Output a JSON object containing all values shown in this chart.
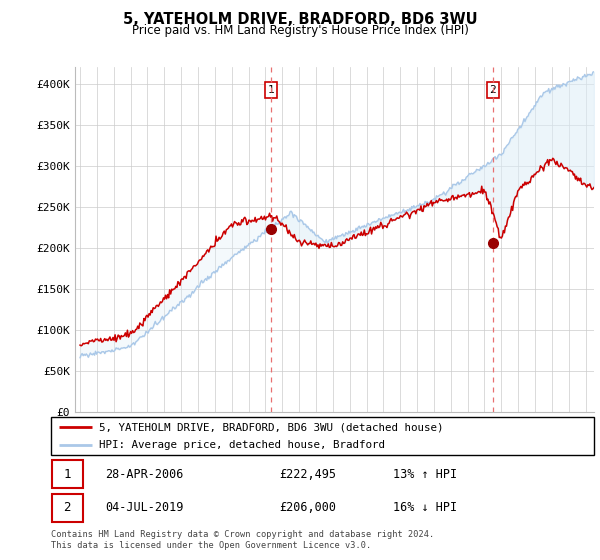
{
  "title": "5, YATEHOLM DRIVE, BRADFORD, BD6 3WU",
  "subtitle": "Price paid vs. HM Land Registry's House Price Index (HPI)",
  "ylim": [
    0,
    420000
  ],
  "yticks": [
    0,
    50000,
    100000,
    150000,
    200000,
    250000,
    300000,
    350000,
    400000
  ],
  "ytick_labels": [
    "£0",
    "£50K",
    "£100K",
    "£150K",
    "£200K",
    "£250K",
    "£300K",
    "£350K",
    "£400K"
  ],
  "hpi_color": "#aac8e8",
  "hpi_fill_color": "#ddeef8",
  "price_color": "#cc0000",
  "vline_color": "#e87070",
  "sale1_date": 2006.33,
  "sale1_price": 222495,
  "sale2_date": 2019.5,
  "sale2_price": 206000,
  "legend_line1": "5, YATEHOLM DRIVE, BRADFORD, BD6 3WU (detached house)",
  "legend_line2": "HPI: Average price, detached house, Bradford",
  "table_row1": [
    "1",
    "28-APR-2006",
    "£222,495",
    "13% ↑ HPI"
  ],
  "table_row2": [
    "2",
    "04-JUL-2019",
    "£206,000",
    "16% ↓ HPI"
  ],
  "footnote": "Contains HM Land Registry data © Crown copyright and database right 2024.\nThis data is licensed under the Open Government Licence v3.0.",
  "background_color": "#ffffff",
  "grid_color": "#cccccc"
}
